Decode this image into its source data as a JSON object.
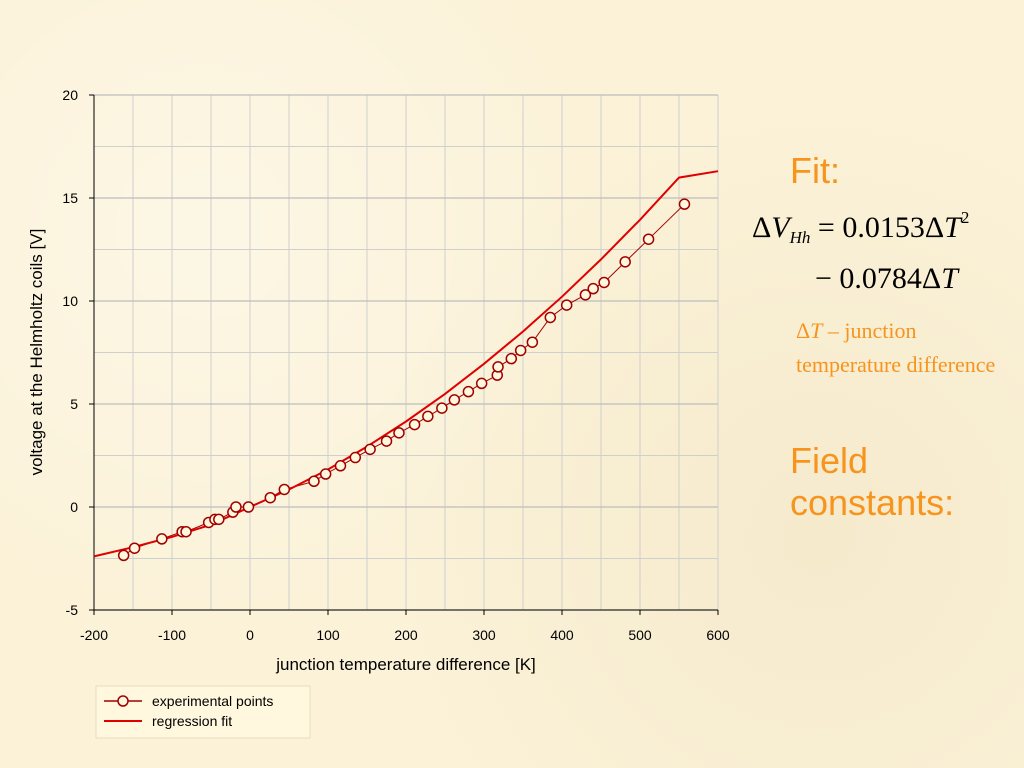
{
  "chart_data": {
    "type": "scatter",
    "xlabel": "junction temperature difference [K]",
    "ylabel": "voltage at the Helmholtz coils [V]",
    "xlim": [
      -200,
      600
    ],
    "ylim": [
      -5,
      20
    ],
    "x_ticks": [
      -200,
      -100,
      0,
      100,
      200,
      300,
      400,
      500,
      600
    ],
    "y_ticks": [
      -5,
      0,
      5,
      10,
      15,
      20
    ],
    "grid": true,
    "legend_position": "bottom-left",
    "series": [
      {
        "name": "experimental points",
        "kind": "points",
        "color": "#a00000",
        "x": [
          -162,
          -148,
          -113,
          -87,
          -82,
          -53,
          -45,
          -40,
          -22,
          -18,
          -2,
          26,
          44,
          82,
          97,
          116,
          135,
          154,
          175,
          191,
          211,
          228,
          246,
          262,
          280,
          297,
          317,
          318,
          335,
          347,
          362,
          385,
          406,
          430,
          440,
          454,
          481,
          511,
          557
        ],
        "y": [
          -2.35,
          -2.0,
          -1.55,
          -1.2,
          -1.2,
          -0.75,
          -0.6,
          -0.6,
          -0.25,
          0.0,
          0.0,
          0.45,
          0.85,
          1.25,
          1.6,
          2.0,
          2.4,
          2.8,
          3.2,
          3.6,
          4.0,
          4.4,
          4.8,
          5.2,
          5.6,
          6.0,
          6.4,
          6.8,
          7.2,
          7.6,
          8.0,
          9.2,
          9.8,
          10.3,
          10.6,
          10.9,
          11.9,
          13.0,
          14.7
        ]
      },
      {
        "name": "regression fit",
        "kind": "line",
        "color": "#e00000",
        "x": [
          -200,
          -150,
          -100,
          -50,
          0,
          50,
          100,
          150,
          200,
          250,
          300,
          350,
          400,
          450,
          500,
          550,
          600
        ],
        "y": [
          -2.4,
          -1.95,
          -1.45,
          -0.86,
          0.0,
          0.85,
          1.82,
          2.93,
          4.15,
          5.49,
          6.95,
          8.52,
          10.21,
          12.02,
          13.94,
          15.99,
          16.3
        ]
      }
    ]
  },
  "side_panel": {
    "fit_title": "Fit:",
    "eq1_delta": "Δ",
    "eq1_var": "V",
    "eq1_sub": "Hh",
    "eq1_eq": " = 0.0153Δ",
    "eq1_var2": "T",
    "eq1_sup": "2",
    "eq2_text": "− 0.0784Δ",
    "eq2_var": "T",
    "note_delta": "Δ",
    "note_var": "T",
    "note_text": " – junction temperature difference",
    "field_line1": "Field",
    "field_line2": "constants:"
  },
  "colors": {
    "accent": "#f7941d",
    "fit_line": "#e00000",
    "points": "#a00000"
  }
}
